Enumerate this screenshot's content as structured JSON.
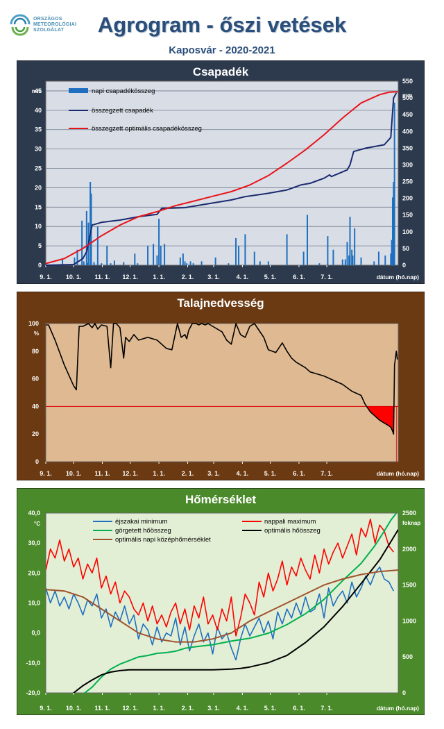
{
  "header": {
    "logo_lines": [
      "ORSZÁGOS",
      "METEOROLÓGIAI",
      "SZOLGÁLAT"
    ],
    "title": "Agrogram - őszi vetések",
    "subtitle": "Kaposvár - 2020-2021"
  },
  "x_ticks": [
    "9. 1.",
    "10. 1.",
    "11. 1.",
    "12. 1.",
    "1. 1.",
    "2. 1.",
    "3. 1.",
    "4. 1.",
    "5. 1.",
    "6. 1.",
    "7. 1."
  ],
  "x_axis_label": "dátum (hó.nap)",
  "colors": {
    "panel1_bg": "#2d3a4d",
    "plot1_bg": "#d9dee6",
    "panel2_bg": "#6b3a12",
    "plot2_bg": "#deb992",
    "panel3_bg": "#4a8a2a",
    "plot3_bg": "#e3efd4"
  },
  "chart_data": [
    {
      "type": "bar",
      "title": "Csapadék",
      "ylabel": "mm",
      "y2label": "mm",
      "ylim": [
        0,
        47.5
      ],
      "y_ticks": [
        "0",
        "5",
        "10",
        "15",
        "20",
        "25",
        "30",
        "35",
        "40",
        "45"
      ],
      "y2lim": [
        0,
        550
      ],
      "y2_ticks": [
        "0",
        "50",
        "100",
        "150",
        "200",
        "250",
        "300",
        "350",
        "400",
        "450",
        "500",
        "550"
      ],
      "grid": true,
      "legend": "top-left",
      "series": [
        {
          "name": "napi csapadékösszeg",
          "type": "bar",
          "color": "#1f6fc0",
          "x": [
            18,
            31,
            34,
            39,
            41,
            44,
            45,
            46,
            48,
            49,
            52,
            56,
            60,
            66,
            70,
            74,
            84,
            96,
            99,
            110,
            116,
            120,
            122,
            124,
            128,
            145,
            148,
            150,
            152,
            156,
            159,
            168,
            183,
            197,
            205,
            208,
            215,
            225,
            231,
            240,
            260,
            278,
            282,
            295,
            304,
            310,
            320,
            323,
            325,
            327,
            328,
            330,
            331,
            333,
            340,
            354,
            359,
            366,
            372,
            373,
            374,
            375,
            376
          ],
          "y": [
            1.5,
            2,
            4,
            11.5,
            1,
            14,
            0.6,
            11,
            21.5,
            18.5,
            0.8,
            10,
            0.5,
            5,
            0.5,
            1.2,
            0.8,
            3,
            0.5,
            5,
            5.5,
            2.5,
            12,
            5,
            5.5,
            2,
            3,
            1,
            0.5,
            1,
            0.5,
            1,
            2,
            0.5,
            7,
            5,
            8,
            3.5,
            1,
            1,
            8,
            3.5,
            13,
            0.5,
            7.5,
            4,
            1.5,
            1.5,
            6,
            2.5,
            12.5,
            4,
            2.5,
            9.5,
            2,
            1,
            3.5,
            2.5,
            3,
            6.5,
            17.5,
            21.5,
            42
          ]
        },
        {
          "name": "összegzett csapadék",
          "type": "line",
          "axis": "y2",
          "color": "#1a2a6e",
          "x": [
            0,
            30,
            40,
            44,
            46,
            48,
            50,
            60,
            80,
            100,
            120,
            125,
            150,
            180,
            200,
            215,
            240,
            260,
            275,
            285,
            300,
            306,
            308,
            325,
            328,
            332,
            345,
            365,
            372,
            375,
            378
          ],
          "y": [
            0,
            2,
            20,
            40,
            65,
            95,
            120,
            128,
            135,
            145,
            152,
            170,
            172,
            186,
            195,
            205,
            215,
            225,
            240,
            245,
            260,
            270,
            265,
            285,
            300,
            340,
            350,
            360,
            382,
            500,
            515
          ]
        },
        {
          "name": "összegzett optimális csapadékösszeg",
          "type": "line",
          "axis": "y2",
          "color": "#e8141a",
          "x": [
            0,
            20,
            40,
            60,
            80,
            100,
            120,
            140,
            160,
            180,
            200,
            220,
            240,
            260,
            280,
            300,
            320,
            340,
            360,
            370,
            375,
            380
          ],
          "y": [
            5,
            20,
            50,
            88,
            120,
            145,
            160,
            178,
            192,
            206,
            220,
            240,
            268,
            305,
            345,
            390,
            440,
            485,
            510,
            517,
            518,
            518
          ]
        }
      ]
    },
    {
      "type": "area",
      "title": "Talajnedvesség",
      "ylabel": "%",
      "ylim": [
        0,
        100
      ],
      "y_ticks": [
        "0",
        "20",
        "40",
        "60",
        "80",
        "100"
      ],
      "threshold": 40,
      "grid": false,
      "series": [
        {
          "name": "",
          "type": "line",
          "color": "#000000",
          "x": [
            0,
            3,
            10,
            20,
            30,
            33,
            36,
            40,
            43,
            46,
            50,
            53,
            56,
            60,
            66,
            70,
            73,
            76,
            80,
            84,
            86,
            90,
            95,
            100,
            110,
            120,
            130,
            136,
            142,
            146,
            150,
            152,
            154,
            158,
            162,
            165,
            168,
            172,
            175,
            180,
            190,
            195,
            200,
            205,
            210,
            215,
            220,
            225,
            230,
            235,
            240,
            248,
            255,
            260,
            265,
            270,
            275,
            280,
            285,
            290,
            300,
            310,
            320,
            330,
            340,
            342,
            344,
            346,
            350,
            355,
            360,
            365,
            370,
            372,
            374,
            375,
            376,
            378,
            379
          ],
          "y": [
            99,
            99,
            88,
            70,
            55,
            52,
            98,
            98,
            99,
            100,
            97,
            100,
            96,
            99,
            98,
            68,
            100,
            100,
            97,
            75,
            90,
            87,
            92,
            88,
            90,
            88,
            82,
            81,
            100,
            90,
            92,
            89,
            95,
            100,
            100,
            99,
            100,
            99,
            100,
            98,
            94,
            88,
            85,
            100,
            92,
            90,
            98,
            100,
            95,
            90,
            81,
            79,
            86,
            80,
            75,
            72,
            70,
            68,
            65,
            64,
            62,
            59,
            56,
            51,
            48,
            45,
            42,
            40,
            36,
            33,
            30,
            28,
            26,
            25,
            22,
            20,
            70,
            80,
            74
          ]
        }
      ]
    },
    {
      "type": "line",
      "title": "Hőmérséklet",
      "ylabel": "°C",
      "y2label": "foknap",
      "ylim": [
        -20,
        40
      ],
      "y_ticks": [
        "-20,0",
        "-10,0",
        "0,0",
        "10,0",
        "20,0",
        "30,0",
        "40,0"
      ],
      "y2lim": [
        0,
        2500
      ],
      "y2_ticks": [
        "0",
        "500",
        "1000",
        "1500",
        "2000",
        "2500"
      ],
      "grid": false,
      "legend": "top",
      "series": [
        {
          "name": "éjszakai minimum",
          "color": "#1f6fc0",
          "x": [
            0,
            5,
            10,
            15,
            20,
            25,
            30,
            35,
            40,
            45,
            50,
            55,
            60,
            65,
            70,
            75,
            80,
            85,
            90,
            95,
            100,
            105,
            110,
            115,
            120,
            125,
            130,
            135,
            140,
            145,
            150,
            155,
            160,
            165,
            170,
            175,
            180,
            185,
            190,
            195,
            200,
            205,
            210,
            215,
            220,
            225,
            230,
            235,
            240,
            245,
            250,
            255,
            260,
            265,
            270,
            275,
            280,
            285,
            290,
            295,
            300,
            305,
            310,
            315,
            320,
            325,
            330,
            335,
            340,
            345,
            350,
            355,
            360,
            365,
            370,
            375
          ],
          "y": [
            15,
            10,
            14,
            9,
            12,
            8,
            13,
            10,
            6,
            11,
            9,
            13,
            5,
            8,
            2,
            7,
            4,
            9,
            3,
            6,
            -2,
            3,
            1,
            -4,
            2,
            -3,
            0,
            -1,
            5,
            -4,
            2,
            -6,
            -1,
            3,
            -3,
            0,
            -7,
            2,
            -2,
            0,
            -5,
            -9,
            -2,
            3,
            -1,
            2,
            5,
            0,
            4,
            -2,
            7,
            3,
            8,
            5,
            10,
            6,
            12,
            7,
            8,
            13,
            5,
            15,
            9,
            12,
            14,
            10,
            17,
            12,
            15,
            19,
            16,
            20,
            22,
            18,
            17,
            14
          ]
        },
        {
          "name": "nappali maximum",
          "color": "#ff0000",
          "x": [
            0,
            5,
            10,
            15,
            20,
            25,
            30,
            35,
            40,
            45,
            50,
            55,
            60,
            65,
            70,
            75,
            80,
            85,
            90,
            95,
            100,
            105,
            110,
            115,
            120,
            125,
            130,
            135,
            140,
            145,
            150,
            155,
            160,
            165,
            170,
            175,
            180,
            185,
            190,
            195,
            200,
            205,
            210,
            215,
            220,
            225,
            230,
            235,
            240,
            245,
            250,
            255,
            260,
            265,
            270,
            275,
            280,
            285,
            290,
            295,
            300,
            305,
            310,
            315,
            320,
            325,
            330,
            335,
            340,
            345,
            350,
            355,
            360,
            365,
            370,
            375
          ],
          "y": [
            21,
            28,
            25,
            31,
            24,
            28,
            22,
            25,
            18,
            23,
            20,
            25,
            15,
            19,
            13,
            17,
            10,
            14,
            12,
            8,
            6,
            10,
            4,
            9,
            3,
            6,
            2,
            7,
            10,
            3,
            8,
            1,
            9,
            5,
            12,
            3,
            6,
            1,
            8,
            4,
            12,
            -1,
            5,
            13,
            10,
            6,
            17,
            12,
            20,
            14,
            18,
            24,
            16,
            22,
            19,
            25,
            21,
            18,
            26,
            20,
            28,
            23,
            27,
            30,
            25,
            29,
            33,
            26,
            35,
            32,
            38,
            30,
            36,
            34,
            29,
            27
          ]
        },
        {
          "name": "görgetett hőösszeg",
          "axis": "y2",
          "color": "#00b050",
          "x": [
            0,
            30,
            40,
            50,
            60,
            70,
            80,
            90,
            100,
            110,
            120,
            130,
            140,
            150,
            160,
            180,
            200,
            220,
            240,
            260,
            280,
            300,
            320,
            340,
            355,
            360,
            365,
            372,
            378
          ],
          "y": [
            -400,
            -200,
            -20,
            80,
            220,
            330,
            400,
            450,
            500,
            520,
            550,
            560,
            580,
            620,
            640,
            670,
            720,
            760,
            830,
            950,
            1100,
            1300,
            1560,
            1800,
            2050,
            2150,
            2250,
            2400,
            2500
          ]
        },
        {
          "name": "optimális hőösszeg",
          "axis": "y2",
          "color": "#000000",
          "x": [
            30,
            40,
            50,
            60,
            70,
            80,
            90,
            100,
            110,
            120,
            140,
            160,
            180,
            200,
            210,
            220,
            240,
            260,
            280,
            300,
            320,
            340,
            360,
            372,
            380
          ],
          "y": [
            0,
            100,
            180,
            250,
            290,
            310,
            320,
            320,
            320,
            320,
            320,
            320,
            320,
            330,
            340,
            360,
            420,
            520,
            700,
            920,
            1200,
            1520,
            1850,
            2100,
            2270
          ]
        },
        {
          "name": "optimális napi középhőmérséklet",
          "color": "#a0522d",
          "x": [
            0,
            20,
            40,
            60,
            80,
            100,
            120,
            140,
            160,
            180,
            200,
            220,
            240,
            260,
            280,
            300,
            320,
            340,
            360,
            380
          ],
          "y": [
            14.5,
            14,
            12,
            8,
            4,
            0,
            -2,
            -3,
            -3,
            -2,
            0,
            4,
            7,
            10,
            13,
            16,
            18,
            19.5,
            20.5,
            21
          ]
        }
      ]
    }
  ]
}
